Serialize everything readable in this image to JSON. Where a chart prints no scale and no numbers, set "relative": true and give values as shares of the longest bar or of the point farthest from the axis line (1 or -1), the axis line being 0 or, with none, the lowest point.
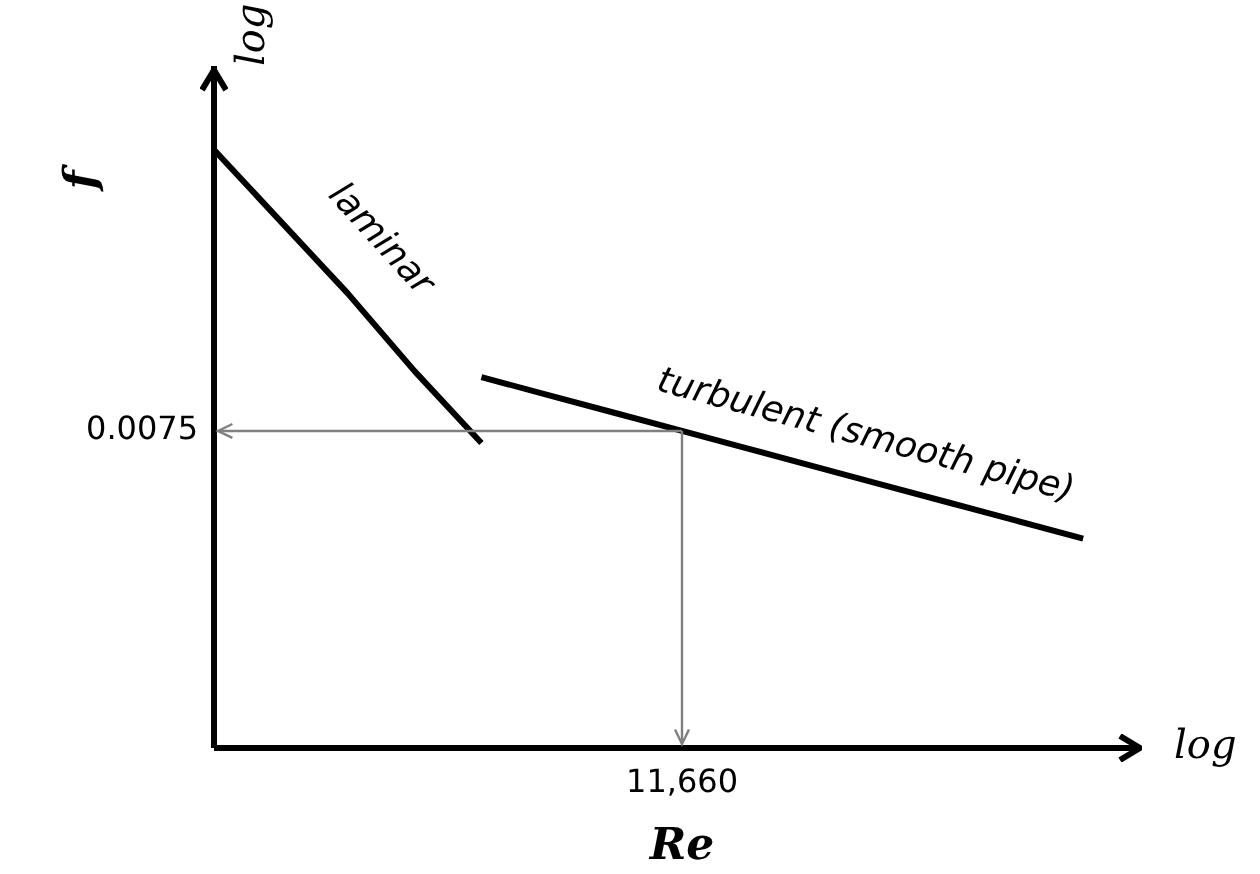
{
  "chart_data": {
    "type": "line",
    "relative": true,
    "xlabel": "Re",
    "ylabel": "f",
    "categories": [
      null,
      null,
      null,
      null,
      null,
      null,
      null,
      null,
      null,
      null,
      null,
      null,
      null,
      null,
      null
    ],
    "series": [
      {
        "name": "laminar",
        "color": "#000000",
        "values": [
          1,
          0.88,
          0.76,
          0.63,
          0.51,
          null,
          null,
          null,
          null,
          null,
          null,
          null,
          null,
          null,
          null
        ]
      },
      {
        "name": "turbulent (smooth pipe)",
        "color": "#000000",
        "values": [
          null,
          null,
          null,
          null,
          0.62,
          0.59,
          0.56,
          0.53,
          0.5,
          0.47,
          0.44,
          0.41,
          0.38,
          0.35,
          null
        ]
      }
    ],
    "ref_lines": [
      {
        "axis": "y",
        "value": 0.53,
        "color": "#808080"
      }
    ],
    "annotations": [
      "log",
      "log",
      "0.0075",
      "11,660"
    ],
    "legend": false,
    "marker": "none",
    "line_style": "solid"
  }
}
